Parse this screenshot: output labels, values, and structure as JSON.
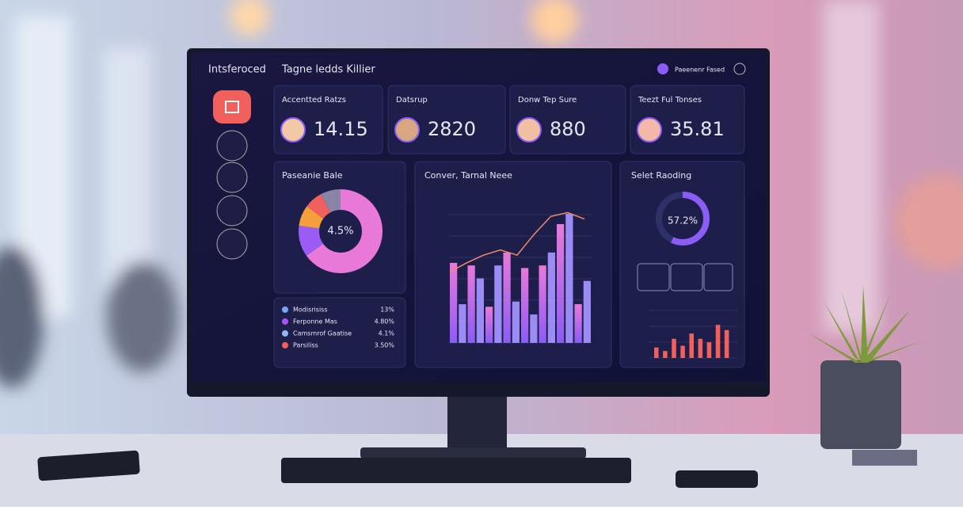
{
  "header": {
    "brand": "Intsferoced",
    "title": "Tagne ledds Killier",
    "user": "Paeenenr Fased"
  },
  "cards": [
    {
      "title": "Accentted Ratzs",
      "value": "14.15"
    },
    {
      "title": "Datsrup",
      "value": "2820"
    },
    {
      "title": "Donw Tep Sure",
      "value": "880"
    },
    {
      "title": "Teezt Ful Tonses",
      "value": "35.81"
    }
  ],
  "donut": {
    "title": "Paseanie Bale",
    "center": "4.5%",
    "segments": [
      {
        "color": "#e879d9",
        "value": 65
      },
      {
        "color": "#9b5cf6",
        "value": 12
      },
      {
        "color": "#f59e3b",
        "value": 8
      },
      {
        "color": "#f0605d",
        "value": 7
      },
      {
        "color": "#8a84a8",
        "value": 8
      }
    ]
  },
  "list": [
    {
      "label": "Modisrisiss",
      "value": "13%",
      "color": "#7aa2f7"
    },
    {
      "label": "Ferponne Mas",
      "value": "4.80%",
      "color": "#a855f7"
    },
    {
      "label": "Camsmrof Gaatise",
      "value": "4.1%",
      "color": "#93b4f5"
    },
    {
      "label": "Parsiliss",
      "value": "3.50%",
      "color": "#f0605d"
    }
  ],
  "conversion": {
    "title": "Conver, Tarnal Neee",
    "bars": [
      62,
      30,
      60,
      50,
      28,
      60,
      70,
      32,
      58,
      22,
      60,
      70,
      92,
      100,
      30,
      48
    ],
    "line": [
      55,
      62,
      68,
      72,
      68,
      84,
      98,
      101,
      96
    ]
  },
  "gauge": {
    "title": "Selet Raoding",
    "value": 57.2,
    "label": "57.2%"
  },
  "mini_bars": [
    12,
    8,
    22,
    14,
    28,
    22,
    18,
    38,
    32
  ]
}
